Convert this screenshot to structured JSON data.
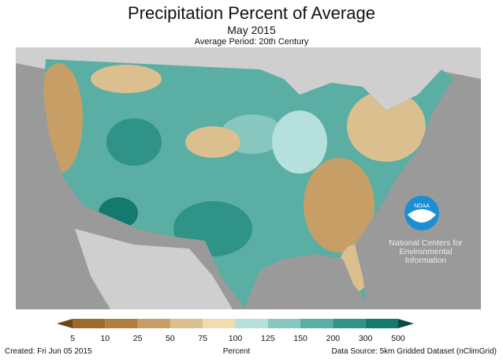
{
  "title": "Precipitation Percent of Average",
  "subtitle": "May 2015",
  "average_period": "Average Period: 20th Century",
  "logo": {
    "text": "NOAA",
    "org": "National Centers for Environmental Information"
  },
  "legend": {
    "label": "Percent",
    "ticks": [
      "5",
      "10",
      "25",
      "50",
      "75",
      "100",
      "125",
      "150",
      "200",
      "300",
      "500"
    ],
    "colors": [
      "#9c6a2a",
      "#b07f3f",
      "#c79f66",
      "#dcbf8e",
      "#efdcb0",
      "#b6e0dc",
      "#87c7bf",
      "#5aaea4",
      "#2f9387",
      "#137a6d"
    ],
    "under_color": "#6e4517",
    "over_color": "#0b4a42"
  },
  "footer": {
    "created": "Created: Fri Jun 05 2015",
    "source": "Data Source: 5km Gridded Dataset (nClimGrid)"
  }
}
